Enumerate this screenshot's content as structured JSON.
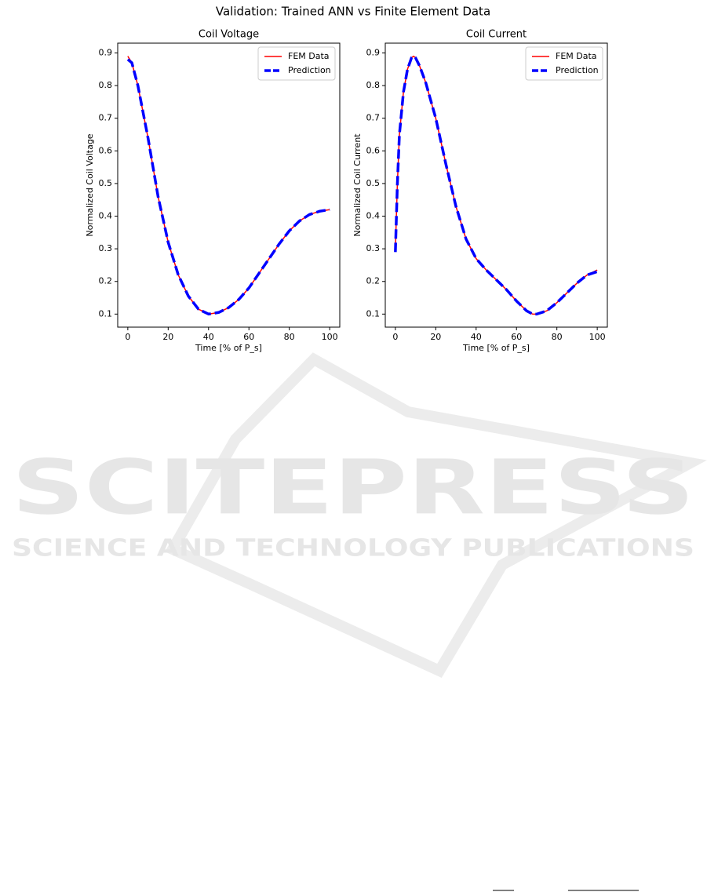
{
  "title": "Validation: Trained ANN vs Finite Element Data",
  "watermark": {
    "name": "SCITEPRESS",
    "tagline": "SCIENCE AND TECHNOLOGY PUBLICATIONS"
  },
  "chart_data": [
    {
      "type": "line",
      "title": "Coil Voltage",
      "x_label": "Time [% of P_s]",
      "y_label": "Normalized Coil Voltage",
      "xlim": [
        -5,
        105
      ],
      "ylim": [
        0.06,
        0.93
      ],
      "xticks": [
        0,
        20,
        40,
        60,
        80,
        100
      ],
      "yticks": [
        0.1,
        0.2,
        0.3,
        0.4,
        0.5,
        0.6,
        0.7,
        0.8,
        0.9
      ],
      "legend": "upper right",
      "grid": false,
      "x": [
        0,
        2,
        5,
        10,
        15,
        20,
        25,
        30,
        35,
        40,
        45,
        50,
        55,
        60,
        65,
        70,
        75,
        80,
        85,
        90,
        95,
        100
      ],
      "series": [
        {
          "name": "FEM Data",
          "color": "#ff0000",
          "linestyle": "solid",
          "values": [
            0.89,
            0.87,
            0.8,
            0.64,
            0.46,
            0.32,
            0.22,
            0.155,
            0.115,
            0.1,
            0.105,
            0.12,
            0.145,
            0.18,
            0.225,
            0.27,
            0.315,
            0.355,
            0.385,
            0.405,
            0.415,
            0.42
          ]
        },
        {
          "name": "Prediction",
          "color": "#0000ff",
          "linestyle": "dashed",
          "values": [
            0.88,
            0.87,
            0.8,
            0.64,
            0.46,
            0.32,
            0.22,
            0.155,
            0.115,
            0.1,
            0.105,
            0.12,
            0.145,
            0.18,
            0.225,
            0.27,
            0.315,
            0.355,
            0.385,
            0.405,
            0.415,
            0.42
          ]
        }
      ]
    },
    {
      "type": "line",
      "title": "Coil Current",
      "x_label": "Time [% of P_s]",
      "y_label": "Normalized Coil Current",
      "xlim": [
        -5,
        105
      ],
      "ylim": [
        0.06,
        0.93
      ],
      "xticks": [
        0,
        20,
        40,
        60,
        80,
        100
      ],
      "yticks": [
        0.1,
        0.2,
        0.3,
        0.4,
        0.5,
        0.6,
        0.7,
        0.8,
        0.9
      ],
      "legend": "upper right",
      "grid": false,
      "x": [
        0,
        1,
        2,
        4,
        6,
        8,
        9,
        10,
        12,
        15,
        20,
        25,
        30,
        35,
        40,
        45,
        50,
        55,
        60,
        65,
        68,
        70,
        75,
        80,
        85,
        90,
        95,
        100
      ],
      "series": [
        {
          "name": "FEM Data",
          "color": "#ff0000",
          "linestyle": "solid",
          "values": [
            0.3,
            0.5,
            0.65,
            0.78,
            0.85,
            0.885,
            0.89,
            0.885,
            0.86,
            0.81,
            0.7,
            0.56,
            0.43,
            0.33,
            0.27,
            0.235,
            0.205,
            0.175,
            0.14,
            0.11,
            0.1,
            0.1,
            0.11,
            0.135,
            0.165,
            0.195,
            0.22,
            0.235
          ]
        },
        {
          "name": "Prediction",
          "color": "#0000ff",
          "linestyle": "dashed",
          "values": [
            0.29,
            0.5,
            0.65,
            0.78,
            0.85,
            0.885,
            0.89,
            0.885,
            0.86,
            0.81,
            0.7,
            0.56,
            0.43,
            0.33,
            0.27,
            0.235,
            0.205,
            0.175,
            0.14,
            0.11,
            0.1,
            0.1,
            0.11,
            0.135,
            0.165,
            0.195,
            0.22,
            0.23
          ]
        }
      ]
    }
  ]
}
